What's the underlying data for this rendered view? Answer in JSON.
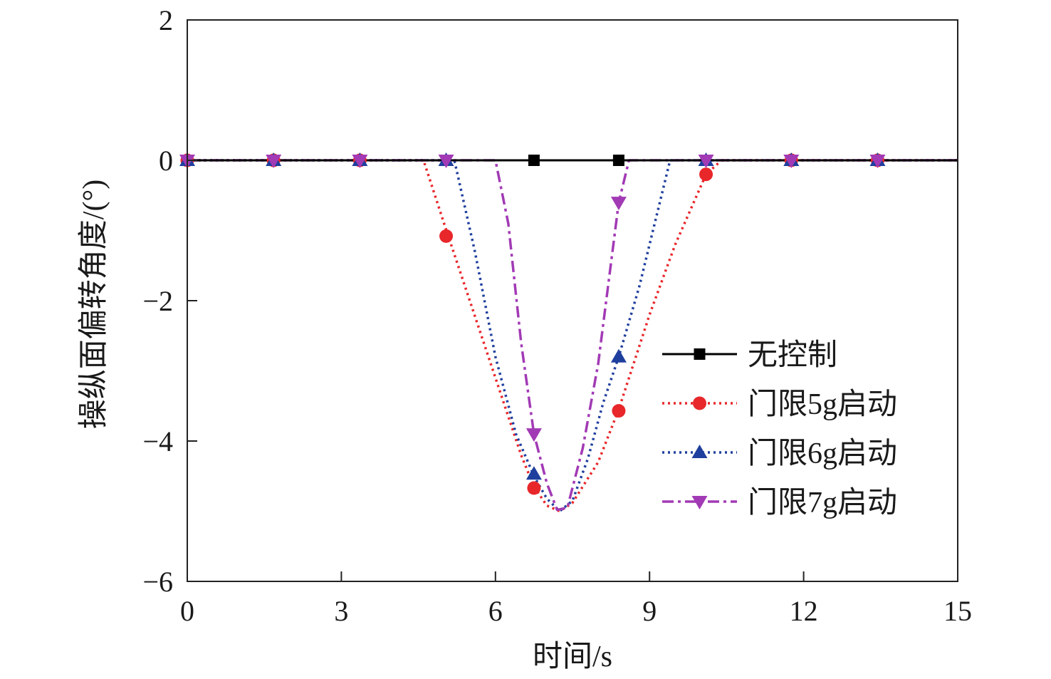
{
  "chart_data": {
    "type": "line",
    "title": "",
    "xlabel": "时间/s",
    "ylabel": "操纵面偏转角度/(°)",
    "xlim": [
      0,
      15
    ],
    "ylim": [
      -6,
      2
    ],
    "x_ticks": [
      0,
      3,
      6,
      9,
      12,
      15
    ],
    "x_tick_labels": [
      "0",
      "3",
      "6",
      "9",
      "12",
      "15"
    ],
    "y_ticks": [
      2,
      0,
      -2,
      -4,
      -6
    ],
    "y_tick_labels": [
      "2",
      "0",
      "−2",
      "−4",
      "−6"
    ],
    "grid": false,
    "legend_position": "right",
    "series": [
      {
        "name": "无控制",
        "color": "#000000",
        "line_style": "solid",
        "marker": "square",
        "x": [
          0,
          15
        ],
        "y": [
          0,
          0
        ],
        "marker_x": [
          6.75,
          8.4
        ],
        "marker_y": [
          0,
          0
        ]
      },
      {
        "name": "门限5g启动",
        "color": "#e8272b",
        "line_style": "dotted",
        "marker": "circle",
        "x": [
          0,
          4.6,
          5.0,
          5.5,
          6.0,
          6.5,
          6.75,
          7.0,
          7.25,
          7.5,
          8.0,
          8.4,
          9.0,
          9.5,
          10.1,
          10.4,
          15
        ],
        "y": [
          0,
          0,
          -0.9,
          -2.0,
          -3.1,
          -4.2,
          -4.65,
          -4.92,
          -5.0,
          -4.88,
          -4.3,
          -3.55,
          -2.2,
          -1.2,
          -0.2,
          0,
          0
        ],
        "marker_x": [
          0,
          1.68,
          3.36,
          5.04,
          6.75,
          8.4,
          10.1,
          11.76,
          13.44
        ],
        "marker_y": [
          0,
          0,
          0,
          -1.08,
          -4.67,
          -3.57,
          -0.2,
          0,
          0
        ]
      },
      {
        "name": "门限6g启动",
        "color": "#1f3f9e",
        "line_style": "dotted",
        "marker": "triangle-up",
        "x": [
          0,
          5.2,
          5.6,
          6.0,
          6.4,
          6.75,
          7.0,
          7.25,
          7.5,
          7.8,
          8.1,
          8.4,
          8.8,
          9.2,
          9.4,
          15
        ],
        "y": [
          0,
          0,
          -1.3,
          -2.8,
          -3.9,
          -4.5,
          -4.82,
          -5.0,
          -4.85,
          -4.25,
          -3.45,
          -2.8,
          -1.8,
          -0.6,
          0,
          0
        ],
        "marker_x": [
          0,
          1.68,
          3.36,
          5.04,
          6.75,
          8.4,
          10.1,
          11.76,
          13.44
        ],
        "marker_y": [
          0,
          0,
          0,
          0,
          -4.47,
          -2.8,
          0,
          0,
          0
        ]
      },
      {
        "name": "门限7g启动",
        "color": "#a23ab5",
        "line_style": "dashdot",
        "marker": "triangle-down",
        "x": [
          0,
          6.0,
          6.25,
          6.5,
          6.75,
          7.0,
          7.2,
          7.4,
          7.7,
          8.0,
          8.4,
          8.6,
          15
        ],
        "y": [
          0,
          0,
          -0.9,
          -2.6,
          -3.9,
          -4.6,
          -4.98,
          -4.95,
          -4.1,
          -2.9,
          -0.6,
          0,
          0
        ],
        "marker_x": [
          0,
          1.68,
          3.36,
          5.04,
          6.75,
          8.4,
          10.1,
          11.76,
          13.44
        ],
        "marker_y": [
          0,
          0,
          0,
          0,
          -3.9,
          -0.6,
          0,
          0,
          0
        ]
      }
    ]
  }
}
